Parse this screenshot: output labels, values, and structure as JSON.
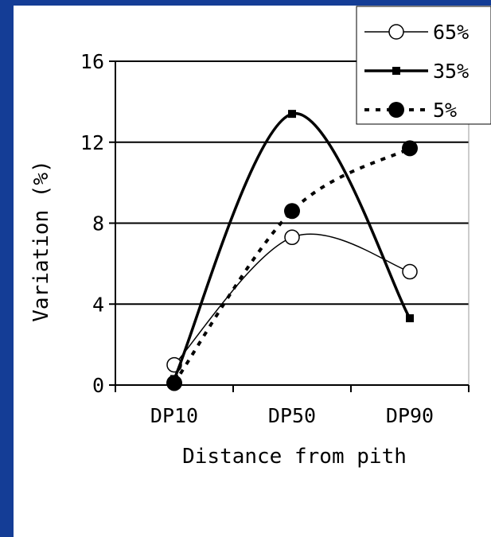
{
  "chart_data": {
    "type": "line",
    "title": "",
    "xlabel": "Distance from pith",
    "ylabel": "Variation (%)",
    "categories": [
      "DP10",
      "DP50",
      "DP90"
    ],
    "ylim": [
      0,
      16
    ],
    "yticks": [
      0,
      4,
      8,
      12,
      16
    ],
    "grid": "horizontal",
    "legend": "top-right",
    "series": [
      {
        "name": "65%",
        "values": [
          1.0,
          7.3,
          5.6
        ],
        "color": "#000000",
        "marker": "open-circle",
        "line": "thin-solid"
      },
      {
        "name": "35%",
        "values": [
          0.3,
          13.4,
          3.3
        ],
        "color": "#000000",
        "marker": "square",
        "line": "thick-solid"
      },
      {
        "name": "5%",
        "values": [
          0.1,
          8.6,
          11.7
        ],
        "color": "#000000",
        "marker": "filled-circle",
        "line": "dotted"
      }
    ]
  },
  "colors": {
    "frame": "#143d96",
    "ink": "#000000",
    "background": "#ffffff"
  }
}
